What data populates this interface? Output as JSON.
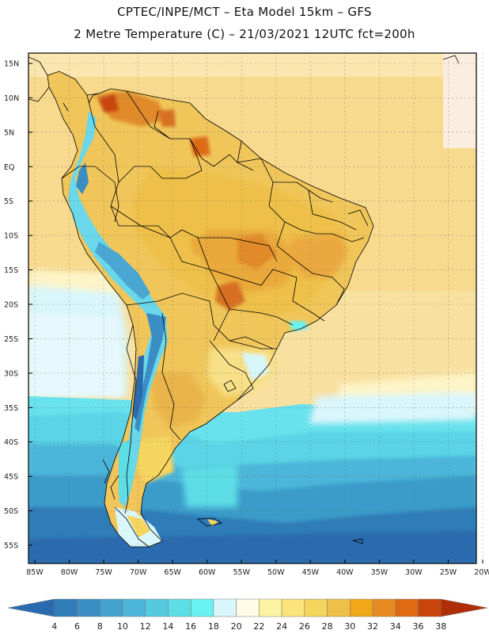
{
  "title": {
    "line1": "CPTEC/INPE/MCT –  Eta Model 15km – GFS",
    "line2": "2 Metre Temperature (C) – 21/03/2021 12UTC fct=200h"
  },
  "map": {
    "lat_labels": [
      "15N",
      "10N",
      "5N",
      "EQ",
      "5S",
      "10S",
      "15S",
      "20S",
      "25S",
      "30S",
      "35S",
      "40S",
      "45S",
      "50S",
      "55S"
    ],
    "lon_labels": [
      "85W",
      "80W",
      "75W",
      "70W",
      "65W",
      "60W",
      "55W",
      "50W",
      "45W",
      "40W",
      "35W",
      "30W",
      "25W",
      "20W"
    ],
    "lat_range": [
      15,
      -55
    ],
    "lon_range": [
      -85,
      -20
    ]
  },
  "colorbar": {
    "labels": [
      "4",
      "6",
      "8",
      "10",
      "12",
      "14",
      "16",
      "18",
      "20",
      "22",
      "24",
      "26",
      "28",
      "30",
      "32",
      "34",
      "36",
      "38"
    ],
    "colors": [
      "#2a6aae",
      "#2f7cb8",
      "#3a8ec4",
      "#43a2cf",
      "#4cb6d9",
      "#55cadf",
      "#5ddde6",
      "#68f2f2",
      "#d9f6fb",
      "#fffbe6",
      "#fdf4a3",
      "#fbe47a",
      "#f5d55e",
      "#eec04a",
      "#f0a818",
      "#e88a22",
      "#de6a12",
      "#c8440a",
      "#b02e05"
    ]
  }
}
